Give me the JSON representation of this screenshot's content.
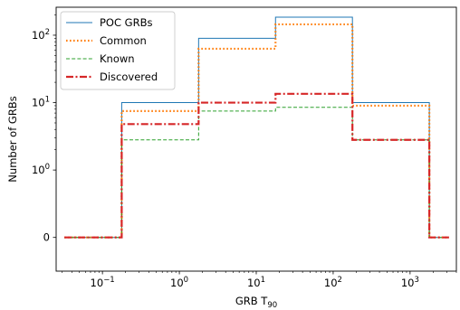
{
  "chart_data": {
    "type": "line",
    "xlabel": "GRB T",
    "xlabel_sub": "90",
    "ylabel": "Number of GRBs",
    "xscale": "log",
    "yscale": "symlog",
    "xlim": [
      0.025,
      4000
    ],
    "ylim": [
      -0.5,
      260
    ],
    "x_ticks": [
      {
        "value": 0.1,
        "base": "10",
        "exp": "−1"
      },
      {
        "value": 1,
        "base": "10",
        "exp": "0"
      },
      {
        "value": 10,
        "base": "10",
        "exp": "1"
      },
      {
        "value": 100,
        "base": "10",
        "exp": "2"
      },
      {
        "value": 1000,
        "base": "10",
        "exp": "3"
      }
    ],
    "y_ticks": [
      {
        "value": 0,
        "label": "0"
      },
      {
        "value": 1,
        "base": "10",
        "exp": "0"
      },
      {
        "value": 10,
        "base": "10",
        "exp": "1"
      },
      {
        "value": 100,
        "base": "10",
        "exp": "2"
      }
    ],
    "bin_edges": [
      0.032,
      0.178,
      1.78,
      17.8,
      178,
      1780,
      3200
    ],
    "series": [
      {
        "name": "POC GRBs",
        "color": "#1f77b4",
        "style": "solid",
        "values": [
          0,
          10,
          90,
          185,
          10,
          0
        ]
      },
      {
        "name": "Common",
        "color": "#ff7f0e",
        "style": "dotted",
        "values": [
          0,
          7.5,
          63,
          145,
          9,
          0
        ]
      },
      {
        "name": "Known",
        "color": "#2ca02c",
        "style": "dashed",
        "values": [
          0,
          2.8,
          7.5,
          8.5,
          2.8,
          0
        ]
      },
      {
        "name": "Discovered",
        "color": "#d62728",
        "style": "dashdot",
        "values": [
          0,
          4.8,
          10,
          13.5,
          2.8,
          0
        ]
      }
    ],
    "legend_position": "top-left",
    "grid": false
  }
}
